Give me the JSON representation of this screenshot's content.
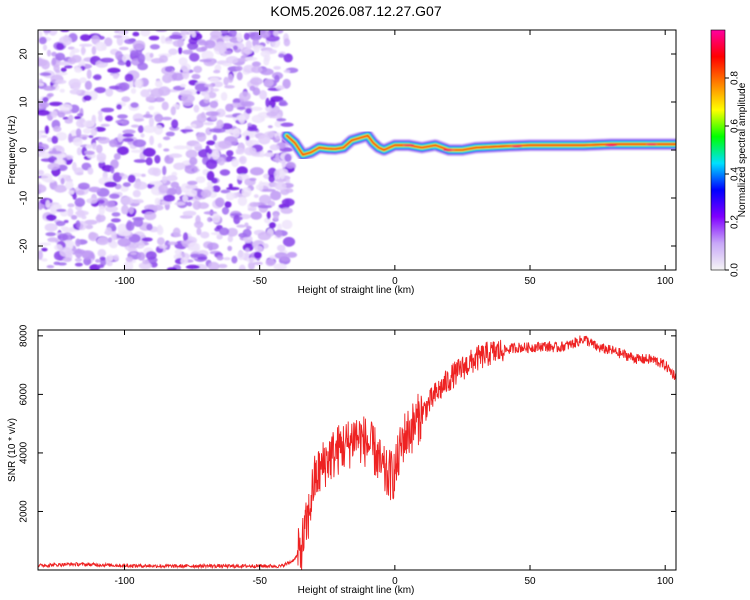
{
  "title": "KOM5.2026.087.12.27.G07",
  "chart_data": [
    {
      "type": "heatmap",
      "title": "KOM5.2026.087.12.27.G07",
      "xlabel": "Height of straight line (km)",
      "ylabel": "Frequency (Hz)",
      "xlim": [
        -132,
        104
      ],
      "ylim": [
        -25,
        25
      ],
      "xticks": [
        -100,
        -50,
        0,
        50,
        100
      ],
      "yticks": [
        -20,
        -10,
        0,
        10,
        20
      ],
      "noise_region_x": [
        -132,
        -38
      ],
      "signal_region_x": [
        -38,
        104
      ],
      "signal_track": {
        "x": [
          -40,
          -37,
          -34,
          -31,
          -28,
          -25,
          -22,
          -19,
          -16,
          -13,
          -10,
          -8,
          -6,
          -4,
          -2,
          0,
          5,
          10,
          15,
          20,
          25,
          30,
          40,
          50,
          60,
          70,
          80,
          90,
          104
        ],
        "freq": [
          3,
          1.5,
          -1,
          -0.5,
          0.5,
          0.3,
          0.2,
          0.5,
          2,
          2.5,
          3,
          1.5,
          0.5,
          0,
          0.5,
          1,
          1,
          0.5,
          1,
          0,
          0,
          0.5,
          0.8,
          1,
          1,
          1,
          1.2,
          1.2,
          1.2
        ]
      },
      "colorbar": {
        "label": "Normalized spectral amplitude",
        "ticks": [
          "0.0",
          "0.2",
          "0.4",
          "0.6",
          "0.8"
        ],
        "range": [
          0,
          1
        ],
        "colors": [
          "#f5f5f5",
          "#c8a8f8",
          "#8000ff",
          "#0000ff",
          "#00e0ff",
          "#00ff00",
          "#ffff00",
          "#ff8000",
          "#ff0000",
          "#ff00a0"
        ]
      }
    },
    {
      "type": "line",
      "xlabel": "Height of straight line (km)",
      "ylabel": "SNR (10 * v/v)",
      "xlim": [
        -132,
        104
      ],
      "ylim": [
        0,
        8200
      ],
      "xticks": [
        -100,
        -50,
        0,
        50,
        100
      ],
      "yticks": [
        2000,
        4000,
        6000,
        8000
      ],
      "color": "#ee2222",
      "series": [
        {
          "name": "SNR",
          "x": [
            -132,
            -120,
            -110,
            -100,
            -90,
            -80,
            -70,
            -60,
            -50,
            -42,
            -38,
            -35,
            -32,
            -30,
            -27,
            -25,
            -22,
            -20,
            -17,
            -15,
            -13,
            -11,
            -9,
            -7,
            -5,
            -3,
            0,
            3,
            6,
            9,
            12,
            15,
            18,
            21,
            25,
            30,
            35,
            40,
            45,
            50,
            55,
            60,
            65,
            70,
            75,
            80,
            85,
            90,
            95,
            100,
            104
          ],
          "y": [
            150,
            200,
            180,
            150,
            140,
            130,
            140,
            130,
            140,
            130,
            300,
            600,
            1800,
            3000,
            3500,
            3800,
            4000,
            4200,
            4300,
            4600,
            4500,
            4400,
            4200,
            4000,
            3500,
            3200,
            3300,
            4500,
            4800,
            5200,
            5600,
            6000,
            6300,
            6600,
            6900,
            7200,
            7400,
            7500,
            7600,
            7600,
            7650,
            7600,
            7700,
            7900,
            7600,
            7500,
            7350,
            7200,
            7200,
            7000,
            6600
          ]
        }
      ]
    }
  ]
}
